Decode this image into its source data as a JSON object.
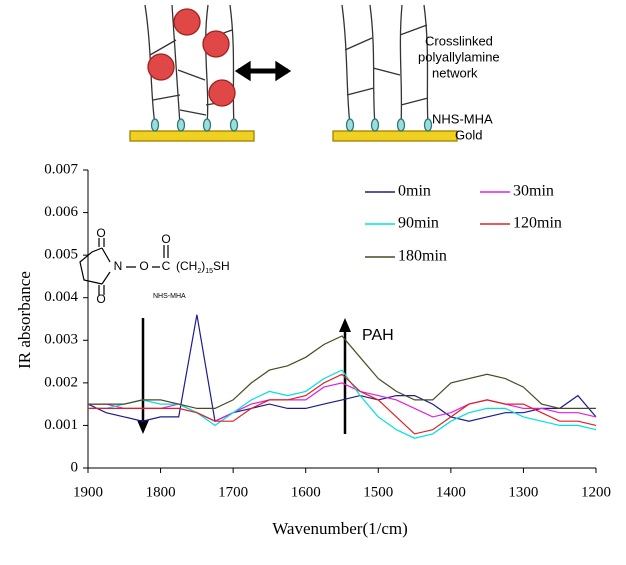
{
  "diagram": {
    "network_label": [
      "Crosslinked",
      "polyallylamine",
      "network"
    ],
    "sam_label": "NHS-MHA",
    "gold_label": "Gold"
  },
  "structure": {
    "atoms": [
      "O",
      "N",
      "O",
      "O",
      "C",
      "O"
    ],
    "chain": "(CH",
    "chain_sub_1": "2",
    "chain_close": ")",
    "chain_sub_2": "15",
    "thiol": "SH",
    "name": "NHS-MHA"
  },
  "chart_data": {
    "type": "line",
    "xlabel": "Wavenumber(1/cm)",
    "ylabel": "IR absorbance",
    "annotation": "PAH",
    "x": [
      1900,
      1875,
      1850,
      1825,
      1800,
      1775,
      1750,
      1725,
      1700,
      1675,
      1650,
      1625,
      1600,
      1575,
      1550,
      1525,
      1500,
      1475,
      1450,
      1425,
      1400,
      1375,
      1350,
      1325,
      1300,
      1275,
      1250,
      1225,
      1200
    ],
    "xlim": [
      1900,
      1200
    ],
    "xticks": [
      1900,
      1800,
      1700,
      1600,
      1500,
      1400,
      1300,
      1200
    ],
    "ylim": [
      0,
      0.007
    ],
    "yticks": [
      0,
      0.001,
      0.002,
      0.003,
      0.004,
      0.005,
      0.006,
      0.007
    ],
    "grid": false,
    "series": [
      {
        "name": "0min",
        "color": "#1c1c8c",
        "values": [
          0.0015,
          0.0013,
          0.0012,
          0.0011,
          0.0012,
          0.0012,
          0.0036,
          0.0011,
          0.0013,
          0.0014,
          0.0015,
          0.0014,
          0.0014,
          0.0015,
          0.0016,
          0.0017,
          0.0016,
          0.0017,
          0.0017,
          0.0015,
          0.0012,
          0.0011,
          0.0012,
          0.0013,
          0.0013,
          0.0014,
          0.0014,
          0.0017,
          0.0012
        ]
      },
      {
        "name": "30min",
        "color": "#e020e0",
        "values": [
          0.0015,
          0.0015,
          0.0014,
          0.0014,
          0.0014,
          0.0015,
          0.0013,
          0.0011,
          0.0013,
          0.0015,
          0.0016,
          0.0016,
          0.0016,
          0.0019,
          0.002,
          0.0018,
          0.0017,
          0.0016,
          0.0014,
          0.0012,
          0.0013,
          0.0015,
          0.0016,
          0.0015,
          0.0014,
          0.0014,
          0.0013,
          0.0013,
          0.0012
        ]
      },
      {
        "name": "90min",
        "color": "#00e0e0",
        "values": [
          0.0014,
          0.0014,
          0.0015,
          0.0016,
          0.0015,
          0.0015,
          0.0013,
          0.001,
          0.0013,
          0.0016,
          0.0018,
          0.0017,
          0.0018,
          0.0021,
          0.0023,
          0.0017,
          0.0012,
          0.0009,
          0.0007,
          0.0008,
          0.0011,
          0.0013,
          0.0014,
          0.0014,
          0.0012,
          0.0011,
          0.001,
          0.001,
          0.0009
        ]
      },
      {
        "name": "120min",
        "color": "#e02020",
        "values": [
          0.0014,
          0.0014,
          0.0014,
          0.0014,
          0.0014,
          0.0014,
          0.0013,
          0.0011,
          0.0011,
          0.0014,
          0.0016,
          0.0016,
          0.0017,
          0.002,
          0.0022,
          0.0018,
          0.0016,
          0.0012,
          0.0008,
          0.0009,
          0.0012,
          0.0015,
          0.0016,
          0.0015,
          0.0015,
          0.0013,
          0.0011,
          0.0011,
          0.001
        ]
      },
      {
        "name": "180min",
        "color": "#4a4a22",
        "values": [
          0.0015,
          0.0015,
          0.0015,
          0.0016,
          0.0016,
          0.0015,
          0.0014,
          0.0014,
          0.0016,
          0.002,
          0.0023,
          0.0024,
          0.0026,
          0.0029,
          0.0031,
          0.0026,
          0.0021,
          0.0018,
          0.0016,
          0.0016,
          0.002,
          0.0021,
          0.0022,
          0.0021,
          0.0019,
          0.0015,
          0.0014,
          0.0014,
          0.0014
        ]
      }
    ]
  }
}
